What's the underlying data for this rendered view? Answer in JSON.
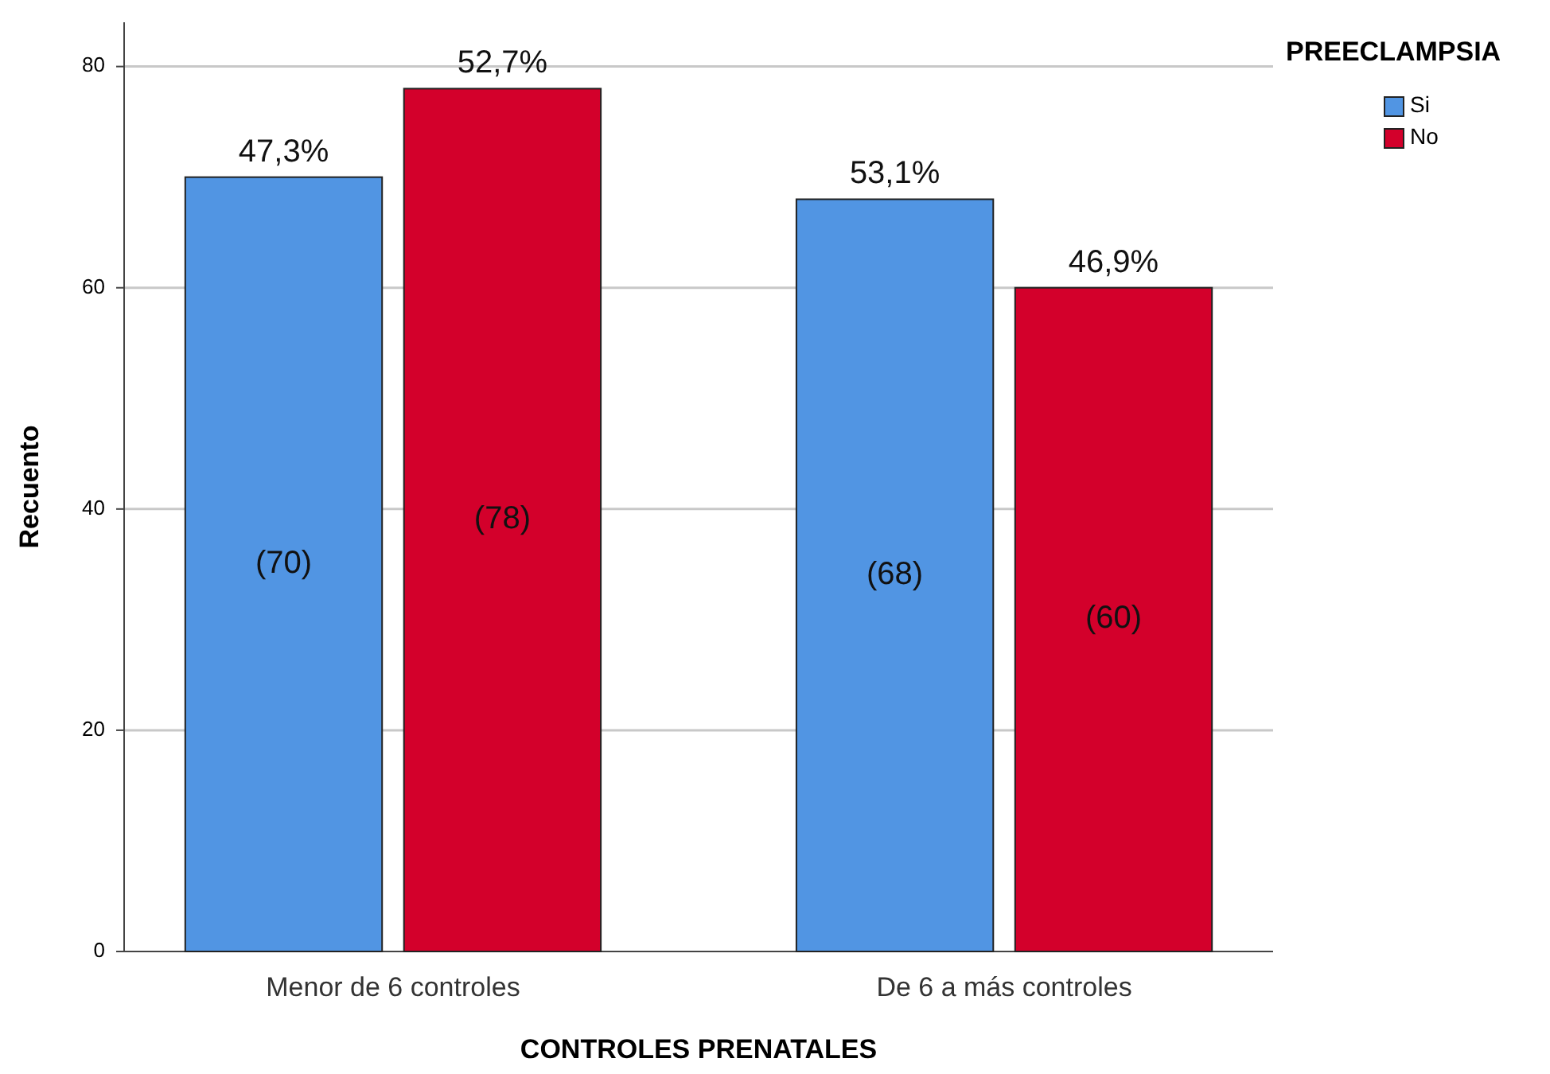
{
  "chart_data": {
    "type": "bar",
    "xlabel": "CONTROLES PRENATALES",
    "ylabel": "Recuento",
    "legend_title": "PREECLAMPSIA",
    "categories": [
      "Menor de 6 controles",
      "De 6 a más controles"
    ],
    "series": [
      {
        "name": "Si",
        "color": "#5195e3",
        "values": [
          70,
          68
        ],
        "value_labels": [
          "(70)",
          "(68)"
        ]
      },
      {
        "name": "No",
        "color": "#d3002b",
        "values": [
          78,
          60
        ],
        "value_labels": [
          "(78)",
          "(60)"
        ]
      }
    ],
    "annotations": [
      "47,3%",
      "52,7%",
      "53,1%",
      "46,9%"
    ],
    "ylim": [
      0,
      84
    ],
    "yticks": [
      0,
      20,
      40,
      60,
      80
    ],
    "grid": "y",
    "legend": "top right"
  }
}
